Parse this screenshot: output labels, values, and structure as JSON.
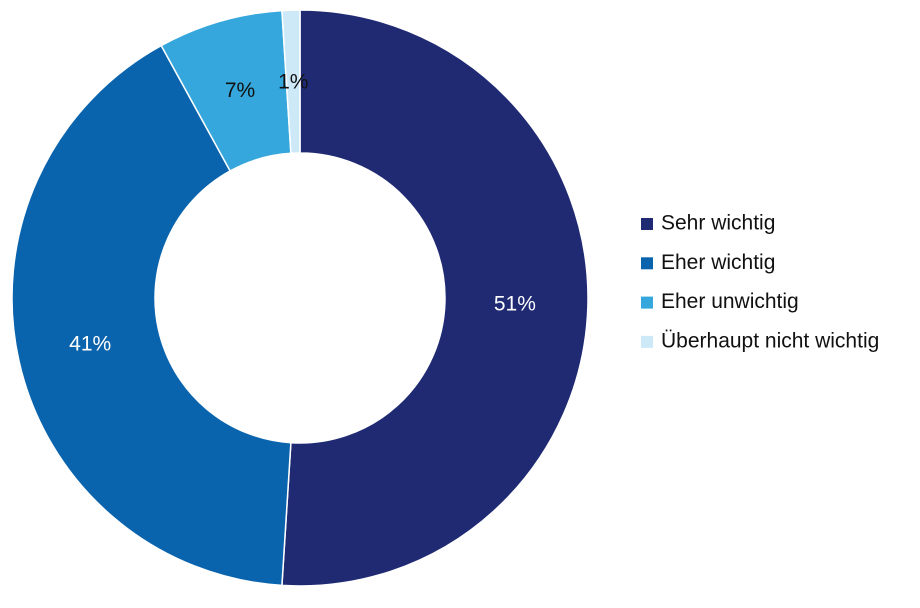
{
  "chart_data": {
    "type": "donut",
    "categories": [
      "Sehr wichtig",
      "Eher wichtig",
      "Eher unwichtig",
      "Überhaupt nicht wichtig"
    ],
    "values": [
      51,
      41,
      7,
      1
    ],
    "value_labels": [
      "51%",
      "41%",
      "7%",
      "1%"
    ],
    "colors": [
      "#1f2a73",
      "#0a64ad",
      "#35a7dc",
      "#cde9f8"
    ],
    "legend": "right"
  }
}
